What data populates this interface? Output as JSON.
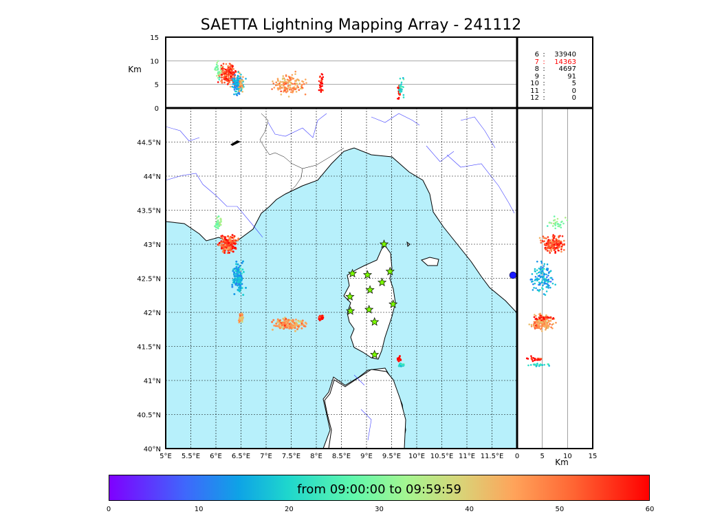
{
  "title": "SAETTA Lightning Mapping Array - 241112",
  "top_panel": {
    "ylabel": "Km",
    "yticks": [
      "0",
      "5",
      "10",
      "15"
    ]
  },
  "side_panel": {
    "xlabel": "Km",
    "xticks": [
      "0",
      "5",
      "10",
      "15"
    ]
  },
  "map": {
    "lat_labels": [
      "40°N",
      "40.5°N",
      "41°N",
      "41.5°N",
      "42°N",
      "42.5°N",
      "43°N",
      "43.5°N",
      "44°N",
      "44.5°N"
    ],
    "lon_labels": [
      "5°E",
      "5.5°E",
      "6°E",
      "6.5°E",
      "7°E",
      "7.5°E",
      "8°E",
      "8.5°E",
      "9°E",
      "9.5°E",
      "10°E",
      "10.5°E",
      "11°E",
      "11.5°E"
    ],
    "lat_range": [
      40,
      45
    ],
    "lon_range": [
      5,
      12
    ],
    "sea_color": "#b7f0fb",
    "station_marker": "star-icon",
    "stations": [
      {
        "lon": 9.35,
        "lat": 43.0
      },
      {
        "lon": 8.72,
        "lat": 42.57
      },
      {
        "lon": 9.02,
        "lat": 42.55
      },
      {
        "lon": 9.47,
        "lat": 42.6
      },
      {
        "lon": 9.31,
        "lat": 42.44
      },
      {
        "lon": 9.07,
        "lat": 42.33
      },
      {
        "lon": 8.67,
        "lat": 42.23
      },
      {
        "lon": 9.53,
        "lat": 42.12
      },
      {
        "lon": 8.68,
        "lat": 42.02
      },
      {
        "lon": 9.05,
        "lat": 42.04
      },
      {
        "lon": 9.16,
        "lat": 41.86
      },
      {
        "lon": 9.16,
        "lat": 41.38
      }
    ]
  },
  "counts": [
    {
      "alt": "6",
      "value": "33940",
      "highlight": false
    },
    {
      "alt": "7",
      "value": "14363",
      "highlight": true
    },
    {
      "alt": "8",
      "value": "4697",
      "highlight": false
    },
    {
      "alt": "9",
      "value": "91",
      "highlight": false
    },
    {
      "alt": "10",
      "value": "5",
      "highlight": false
    },
    {
      "alt": "11",
      "value": "0",
      "highlight": false
    },
    {
      "alt": "12",
      "value": "0",
      "highlight": false
    }
  ],
  "colorbar": {
    "label": "from 09:00:00 to 09:59:59",
    "ticks": [
      "0",
      "10",
      "20",
      "30",
      "40",
      "50",
      "60"
    ],
    "range": [
      0,
      60
    ]
  },
  "lightning_clusters": [
    {
      "lon": 6.25,
      "lat": 43.0,
      "alt": 7,
      "spread_lon": 0.15,
      "spread_lat": 0.12,
      "time": 55,
      "n": 180
    },
    {
      "lon": 6.05,
      "lat": 43.3,
      "alt": 8,
      "spread_lon": 0.06,
      "spread_lat": 0.08,
      "time": 30,
      "n": 30
    },
    {
      "lon": 6.45,
      "lat": 42.5,
      "alt": 5,
      "spread_lon": 0.1,
      "spread_lat": 0.2,
      "time": 15,
      "n": 130
    },
    {
      "lon": 6.5,
      "lat": 41.92,
      "alt": 5,
      "spread_lon": 0.05,
      "spread_lat": 0.06,
      "time": 45,
      "n": 30
    },
    {
      "lon": 7.45,
      "lat": 41.82,
      "alt": 5,
      "spread_lon": 0.28,
      "spread_lat": 0.07,
      "time": 48,
      "n": 150
    },
    {
      "lon": 8.1,
      "lat": 41.92,
      "alt": 5,
      "spread_lon": 0.04,
      "spread_lat": 0.03,
      "time": 59,
      "n": 30
    },
    {
      "lon": 9.65,
      "lat": 41.32,
      "alt": 4,
      "spread_lon": 0.03,
      "spread_lat": 0.03,
      "time": 59,
      "n": 25
    },
    {
      "lon": 9.7,
      "lat": 41.23,
      "alt": 4,
      "spread_lon": 0.06,
      "spread_lat": 0.02,
      "time": 20,
      "n": 30
    }
  ]
}
